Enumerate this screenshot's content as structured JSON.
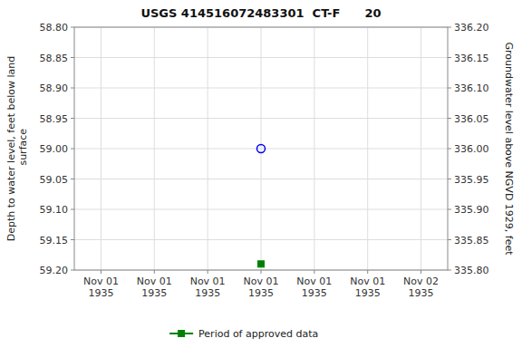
{
  "chart_data": {
    "type": "scatter",
    "title": "USGS 414516072483301  CT-F      20",
    "y_label": "Depth to water level, feet below land\n surface",
    "y2_label": "Groundwater level above NGVD 1929, feet",
    "categories": [
      "Nov 01\n1935",
      "Nov 01\n1935",
      "Nov 01\n1935",
      "Nov 01\n1935",
      "Nov 01\n1935",
      "Nov 01\n1935",
      "Nov 02\n1935"
    ],
    "series": [
      {
        "color": "blue",
        "marker": "circle",
        "values": [
          null,
          null,
          null,
          59.0,
          null,
          null,
          null
        ]
      },
      {
        "name": "Period of approved data",
        "color": "#008000",
        "marker": "square",
        "values": [
          null,
          null,
          null,
          59.19,
          null,
          null,
          null
        ]
      }
    ],
    "ylim": [
      59.2,
      58.8
    ],
    "yticks": [
      {
        "value": 58.8,
        "label": "58.80"
      },
      {
        "value": 58.85,
        "label": "58.85"
      },
      {
        "value": 58.9,
        "label": "58.90"
      },
      {
        "value": 58.95,
        "label": "58.95"
      },
      {
        "value": 59.0,
        "label": "59.00"
      },
      {
        "value": 59.05,
        "label": "59.05"
      },
      {
        "value": 59.1,
        "label": "59.10"
      },
      {
        "value": 59.15,
        "label": "59.15"
      },
      {
        "value": 59.2,
        "label": "59.20"
      }
    ],
    "y2lim": [
      335.8,
      336.2
    ],
    "y2ticks": [
      {
        "value": 336.2,
        "label": "336.20"
      },
      {
        "value": 336.15,
        "label": "336.15"
      },
      {
        "value": 336.1,
        "label": "336.10"
      },
      {
        "value": 336.05,
        "label": "336.05"
      },
      {
        "value": 336.0,
        "label": "336.00"
      },
      {
        "value": 335.95,
        "label": "335.95"
      },
      {
        "value": 335.9,
        "label": "335.90"
      },
      {
        "value": 335.85,
        "label": "335.85"
      },
      {
        "value": 335.8,
        "label": "335.80"
      }
    ],
    "grid": true,
    "legend": "bottom"
  }
}
